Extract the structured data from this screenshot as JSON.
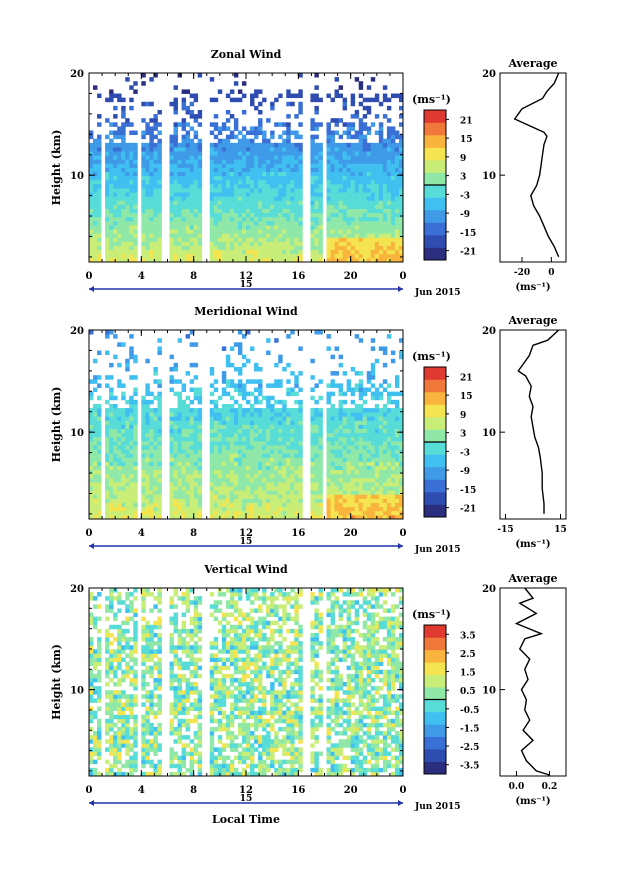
{
  "x_label": "Local Time",
  "date_label": "Jun 2015",
  "day_label": "15",
  "height_label": "Height (km)",
  "unit_label": "(ms⁻¹)",
  "avg_title": "Average",
  "avg_xunit": "(ms⁻¹)",
  "colormap": [
    "#2b2d7f",
    "#2f4cb0",
    "#3a6fd6",
    "#3f9ae8",
    "#40c0f0",
    "#58dcd8",
    "#8fe8a8",
    "#c9ee78",
    "#f4e450",
    "#f8b43c",
    "#f0783a",
    "#e03a30"
  ],
  "chart_data": [
    {
      "type": "heatmap",
      "title": "Zonal Wind",
      "xlabel": "Local Time",
      "ylabel": "Height (km)",
      "xticks": [
        "0",
        "4",
        "8",
        "12",
        "16",
        "20",
        "0"
      ],
      "yticks": [
        "20",
        "10"
      ],
      "xlim": [
        0,
        24
      ],
      "ylim": [
        1.5,
        20
      ],
      "colorbar_ticks": [
        "21",
        "15",
        "9",
        "3",
        "-3",
        "-9",
        "-15",
        "-21"
      ],
      "colorbar_range": [
        -24,
        24
      ],
      "profile": {
        "title": "Average",
        "xlim": [
          -35,
          10
        ],
        "xticks": [
          "-20",
          "0"
        ],
        "points": [
          [
            5,
            20
          ],
          [
            2,
            19
          ],
          [
            -3,
            18.2
          ],
          [
            -6,
            17.5
          ],
          [
            -20,
            16.5
          ],
          [
            -25,
            15.5
          ],
          [
            -5,
            14.2
          ],
          [
            -3,
            13.8
          ],
          [
            -5,
            13
          ],
          [
            -6,
            12
          ],
          [
            -7,
            11
          ],
          [
            -8,
            10
          ],
          [
            -10,
            9
          ],
          [
            -14,
            8
          ],
          [
            -12,
            7
          ],
          [
            -8,
            6
          ],
          [
            -5,
            5
          ],
          [
            -2,
            4
          ],
          [
            2,
            3
          ],
          [
            5,
            2
          ]
        ]
      }
    },
    {
      "type": "heatmap",
      "title": "Meridional Wind",
      "xlabel": "Local Time",
      "ylabel": "Height (km)",
      "xticks": [
        "0",
        "4",
        "8",
        "12",
        "16",
        "20",
        "0"
      ],
      "yticks": [
        "20",
        "10"
      ],
      "xlim": [
        0,
        24
      ],
      "ylim": [
        1.5,
        20
      ],
      "colorbar_ticks": [
        "21",
        "15",
        "9",
        "3",
        "-3",
        "-9",
        "-15",
        "-21"
      ],
      "colorbar_range": [
        -24,
        24
      ],
      "profile": {
        "title": "Average",
        "xlim": [
          -18,
          18
        ],
        "xticks": [
          "-15",
          "15"
        ],
        "points": [
          [
            14,
            20
          ],
          [
            8,
            19
          ],
          [
            0,
            18.5
          ],
          [
            -2,
            17.5
          ],
          [
            -8,
            16
          ],
          [
            -4,
            15.5
          ],
          [
            -1,
            14.5
          ],
          [
            -2,
            13.5
          ],
          [
            0,
            12.5
          ],
          [
            -1,
            11.5
          ],
          [
            0,
            10.5
          ],
          [
            1,
            9.5
          ],
          [
            3,
            8.5
          ],
          [
            4,
            7.5
          ],
          [
            5,
            6
          ],
          [
            5,
            4.5
          ],
          [
            6,
            3
          ],
          [
            6,
            2
          ]
        ]
      }
    },
    {
      "type": "heatmap",
      "title": "Vertical Wind",
      "xlabel": "Local Time",
      "ylabel": "Height (km)",
      "xticks": [
        "0",
        "4",
        "8",
        "12",
        "16",
        "20",
        "0"
      ],
      "yticks": [
        "20",
        "10"
      ],
      "xlim": [
        0,
        24
      ],
      "ylim": [
        1.5,
        20
      ],
      "colorbar_ticks": [
        "3.5",
        "2.5",
        "1.5",
        "0.5",
        "-0.5",
        "-1.5",
        "-2.5",
        "-3.5"
      ],
      "colorbar_range": [
        -4,
        4
      ],
      "profile": {
        "title": "Average",
        "xlim": [
          -0.1,
          0.3
        ],
        "xticks": [
          "0.0",
          "0.2"
        ],
        "points": [
          [
            0.05,
            20
          ],
          [
            0.1,
            19
          ],
          [
            0.02,
            18.5
          ],
          [
            0.12,
            17.5
          ],
          [
            0.0,
            16.5
          ],
          [
            0.15,
            15.5
          ],
          [
            0.05,
            15
          ],
          [
            0.02,
            14
          ],
          [
            0.08,
            13
          ],
          [
            0.05,
            12
          ],
          [
            0.07,
            11
          ],
          [
            0.03,
            10
          ],
          [
            0.06,
            9
          ],
          [
            0.05,
            8
          ],
          [
            0.08,
            7
          ],
          [
            0.04,
            6
          ],
          [
            0.1,
            5
          ],
          [
            0.03,
            4
          ],
          [
            0.06,
            3
          ],
          [
            0.12,
            2
          ],
          [
            0.2,
            1.6
          ]
        ]
      }
    }
  ]
}
